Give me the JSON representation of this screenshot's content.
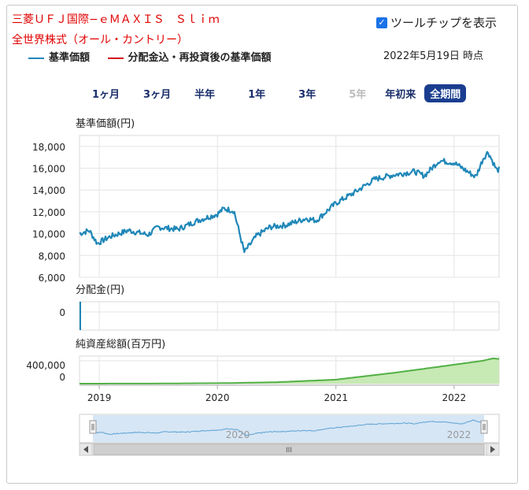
{
  "header": {
    "fund_name_line1": "三菱ＵＦＪ国際−ｅＭＡＸＩＳ　Ｓｌｉｍ",
    "fund_name_line2": "全世界株式（オール・カントリー）",
    "tooltip_label": "ツールチップを表示",
    "tooltip_checked": true,
    "as_of": "2022年5月19日 時点"
  },
  "legend": [
    {
      "label": "基準価額",
      "color": "#1f87b8"
    },
    {
      "label": "分配金込・再投資後の基準価額",
      "color": "#d0021b"
    }
  ],
  "ranges": [
    {
      "label": "1ヶ月",
      "state": "normal"
    },
    {
      "label": "3ヶ月",
      "state": "normal"
    },
    {
      "label": "半年",
      "state": "normal"
    },
    {
      "label": "1年",
      "state": "normal"
    },
    {
      "label": "3年",
      "state": "normal"
    },
    {
      "label": "5年",
      "state": "disabled"
    },
    {
      "label": "年初来",
      "state": "normal"
    },
    {
      "label": "全期間",
      "state": "active"
    }
  ],
  "chart_data": [
    {
      "type": "line",
      "title": "基準価額(円)",
      "yticks": [
        "18,000",
        "16,000",
        "14,000",
        "12,000",
        "10,000",
        "8,000",
        "6,000"
      ],
      "ylim": [
        6000,
        19000
      ],
      "xlim": [
        "2018-10-31",
        "2022-05-19"
      ],
      "grid": true,
      "series": [
        {
          "name": "基準価額",
          "color": "#1f87b8",
          "x": [
            "2018-10-31",
            "2018-11-30",
            "2018-12-25",
            "2019-01-31",
            "2019-03-31",
            "2019-05-31",
            "2019-06-30",
            "2019-08-31",
            "2019-10-31",
            "2019-12-31",
            "2020-01-20",
            "2020-02-20",
            "2020-03-23",
            "2020-04-30",
            "2020-06-10",
            "2020-07-31",
            "2020-09-30",
            "2020-10-31",
            "2020-12-31",
            "2021-02-28",
            "2021-04-30",
            "2021-06-30",
            "2021-08-31",
            "2021-09-30",
            "2021-11-15",
            "2021-12-31",
            "2022-01-31",
            "2022-03-08",
            "2022-03-31",
            "2022-04-15",
            "2022-05-12",
            "2022-05-19"
          ],
          "values": [
            10000,
            10300,
            9100,
            9700,
            10300,
            9900,
            10600,
            10400,
            11200,
            11800,
            12300,
            12100,
            8300,
            9800,
            10600,
            10800,
            11400,
            11200,
            12800,
            13800,
            15000,
            15400,
            15700,
            15300,
            16700,
            16500,
            15900,
            15200,
            16900,
            17500,
            15800,
            15900
          ]
        }
      ]
    },
    {
      "type": "line",
      "title": "分配金(円)",
      "yticks": [
        "0"
      ],
      "ylim": [
        0,
        1
      ],
      "series": [
        {
          "name": "分配金",
          "color": "#1f87b8",
          "x": [
            "2018-10-31",
            "2022-05-19"
          ],
          "values": [
            0,
            0
          ]
        }
      ]
    },
    {
      "type": "area",
      "title": "純資産総額(百万円)",
      "yticks": [
        "400,000",
        "0"
      ],
      "ylim": [
        0,
        480000
      ],
      "xticks": [
        "2019",
        "2020",
        "2021",
        "2022"
      ],
      "series": [
        {
          "name": "純資産総額",
          "color": "#52b045",
          "fill": "#c7e9b4",
          "x": [
            "2018-10-31",
            "2019-06-30",
            "2020-01-31",
            "2020-06-30",
            "2020-12-31",
            "2021-06-30",
            "2021-12-31",
            "2022-03-31",
            "2022-04-30",
            "2022-05-19"
          ],
          "values": [
            0,
            2000,
            10000,
            25000,
            70000,
            190000,
            330000,
            400000,
            440000,
            430000
          ]
        }
      ]
    }
  ],
  "navigator": {
    "labels": [
      "2020",
      "2022"
    ],
    "scroll_label": "III"
  }
}
